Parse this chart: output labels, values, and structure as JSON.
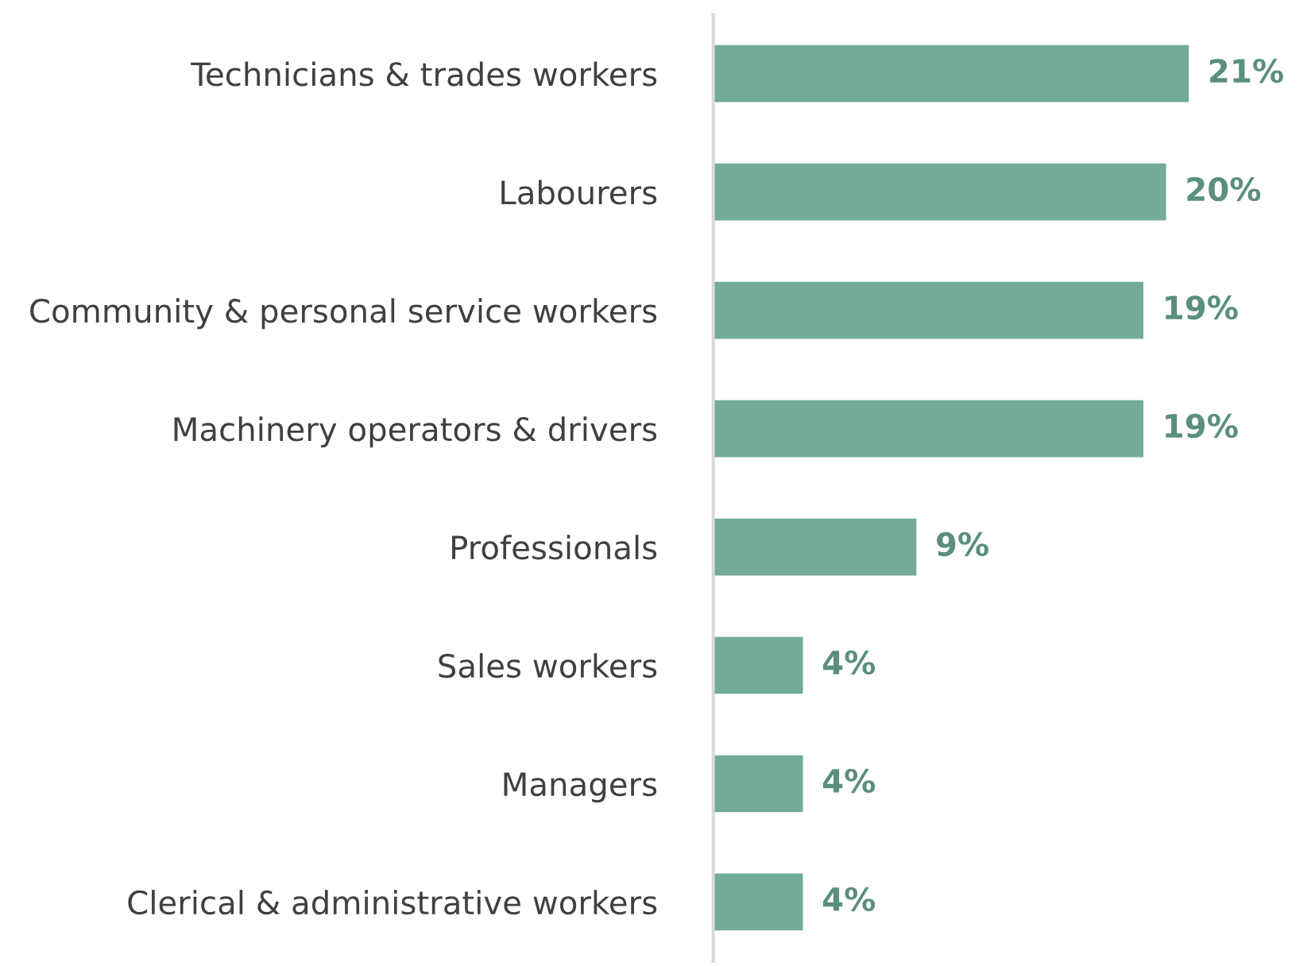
{
  "chart_data": {
    "type": "bar",
    "orientation": "horizontal",
    "categories": [
      "Technicians & trades workers",
      "Labourers",
      "Community & personal service workers",
      "Machinery operators & drivers",
      "Professionals",
      "Sales workers",
      "Managers",
      "Clerical & administrative workers"
    ],
    "values": [
      21,
      20,
      19,
      19,
      9,
      4,
      4,
      4
    ],
    "value_labels": [
      "21%",
      "20%",
      "19%",
      "19%",
      "9%",
      "4%",
      "4%",
      "4%"
    ],
    "color": "#72ab97",
    "tick_labels": "y",
    "grid": false,
    "legend": false
  }
}
